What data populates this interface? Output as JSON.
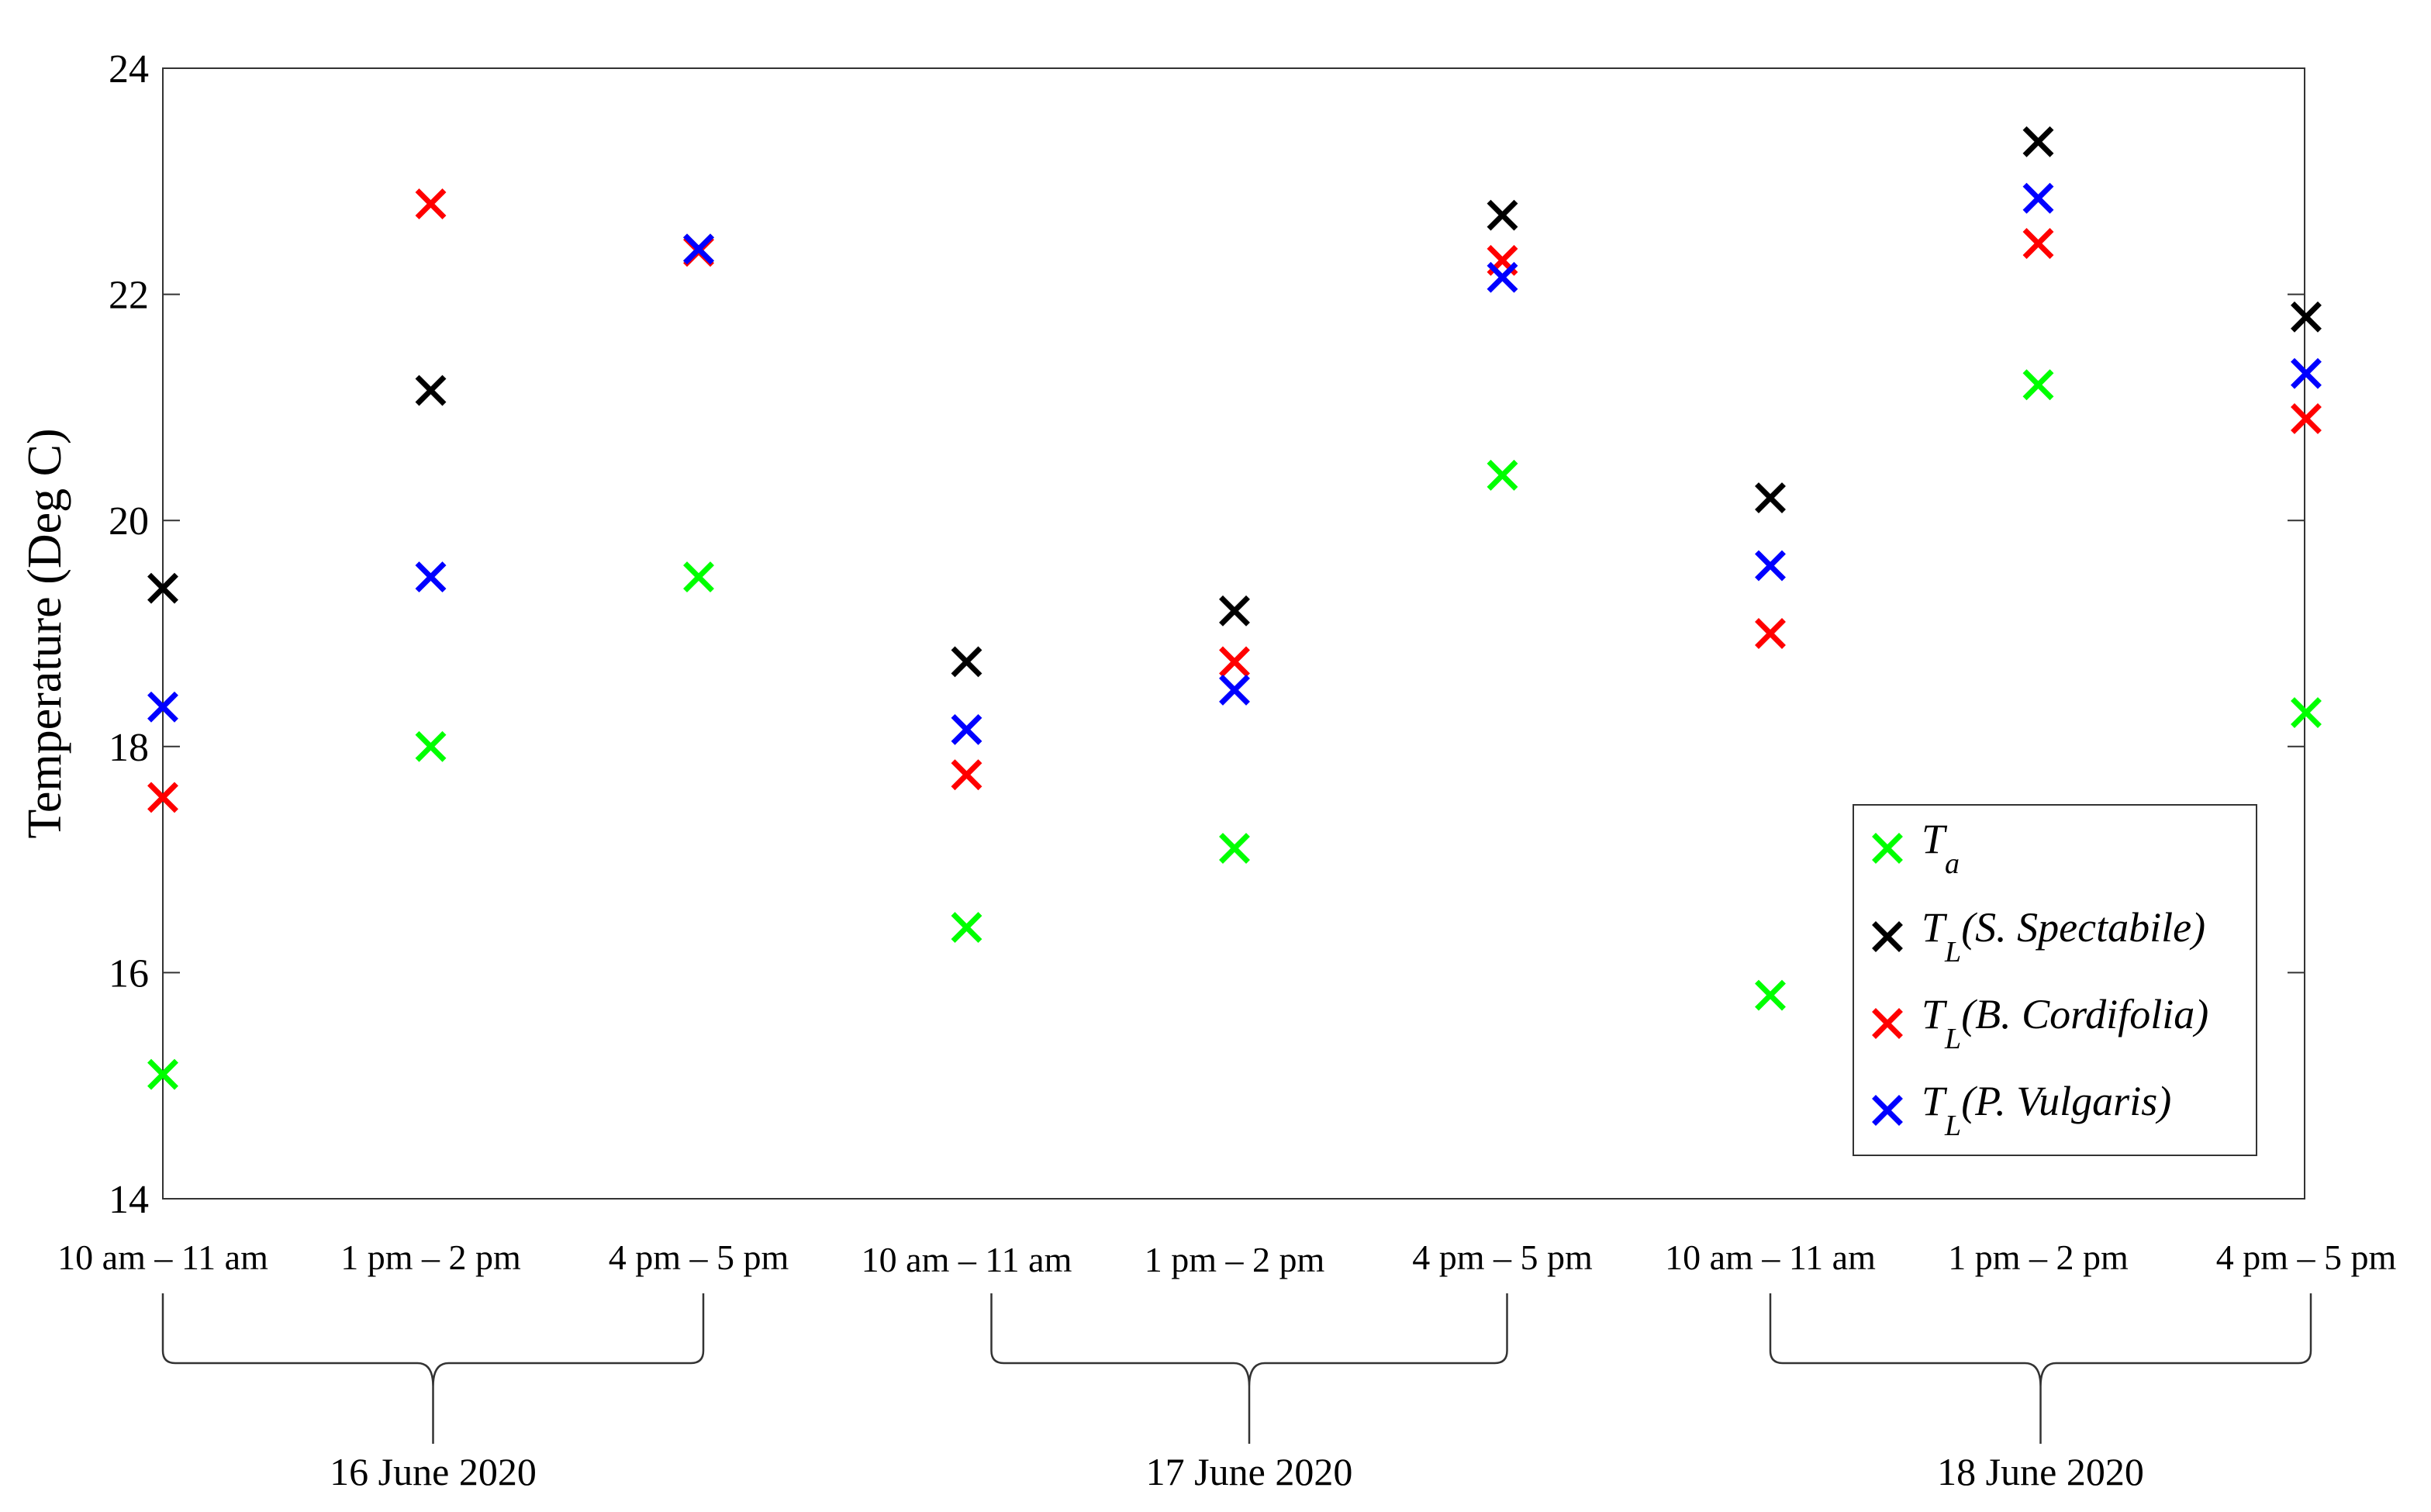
{
  "chart_data": {
    "type": "scatter",
    "ylabel": "Temperature (Deg C)",
    "xlabel": "",
    "ylim": [
      14,
      24
    ],
    "yticks": [
      14,
      16,
      18,
      20,
      22,
      24
    ],
    "grid": false,
    "legend_position": "bottom-right",
    "categories": [
      "10 am – 11 am",
      "1 pm – 2 pm",
      "4 pm – 5 pm",
      "10 am – 11 am",
      "1 pm – 2 pm",
      "4 pm – 5 pm",
      "10 am – 11 am",
      "1 pm – 2 pm",
      "4 pm – 5 pm"
    ],
    "groups": [
      {
        "label": "16 June 2020",
        "from": 0,
        "to": 2
      },
      {
        "label": "17 June 2020",
        "from": 3,
        "to": 5
      },
      {
        "label": "18 June 2020",
        "from": 6,
        "to": 8
      }
    ],
    "series": [
      {
        "name": "T_a",
        "legend_main": "T",
        "legend_sub": "a",
        "legend_tail": "",
        "color": "#00ff00",
        "values": [
          15.1,
          18.0,
          19.5,
          16.4,
          17.1,
          20.4,
          15.8,
          21.2,
          18.3
        ]
      },
      {
        "name": "T_L(S. Spectabile)",
        "legend_main": "T",
        "legend_sub": "L",
        "legend_tail": "(S. Spectabile)",
        "color": "#000000",
        "values": [
          19.4,
          21.15,
          22.4,
          18.75,
          19.2,
          22.7,
          20.2,
          23.35,
          21.8
        ]
      },
      {
        "name": "T_L(B. Cordifolia)",
        "legend_main": "T",
        "legend_sub": "L",
        "legend_tail": "(B. Cordifolia)",
        "color": "#ff0000",
        "values": [
          17.55,
          22.8,
          22.38,
          17.75,
          18.75,
          22.3,
          19.0,
          22.45,
          20.9
        ]
      },
      {
        "name": "T_L(P. Vulgaris)",
        "legend_main": "T",
        "legend_sub": "L",
        "legend_tail": "(P. Vulgaris)",
        "color": "#0000ff",
        "values": [
          18.35,
          19.5,
          22.4,
          18.15,
          18.5,
          22.15,
          19.6,
          22.85,
          21.3
        ]
      }
    ]
  }
}
